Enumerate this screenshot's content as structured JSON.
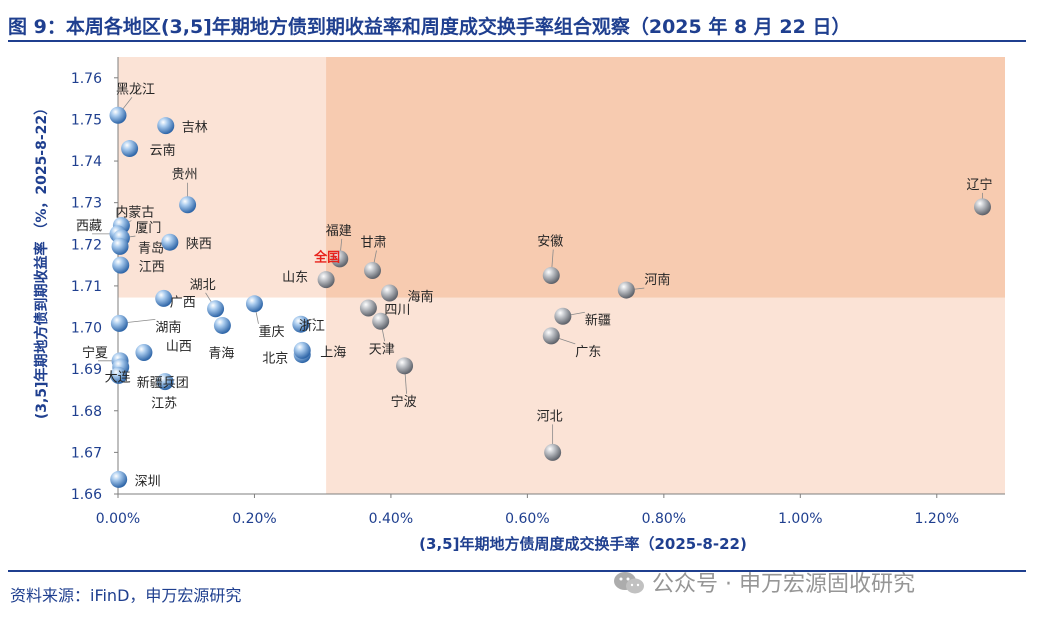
{
  "figure": {
    "title": "图 9：本周各地区(3,5]年期地方债到期收益率和周度成交换手率组合观察（2025 年 8 月 22 日）",
    "source": "资料来源：iFinD，申万宏源研究",
    "watermark": "公众号 · 申万宏源固收研究"
  },
  "chart_data": {
    "type": "scatter",
    "xlabel": "(3,5]年期地方债周度成交换手率（2025-8-22)",
    "ylabel": "(3,5]年期地方债到期收益率 （%，2025-8-22）",
    "xlim": [
      0.0,
      1.3
    ],
    "ylim": [
      1.66,
      1.765
    ],
    "x_ticks": [
      0.0,
      0.2,
      0.4,
      0.6,
      0.8,
      1.0,
      1.2
    ],
    "x_tick_labels": [
      "0.00%",
      "0.20%",
      "0.40%",
      "0.60%",
      "0.80%",
      "1.00%",
      "1.20%"
    ],
    "y_ticks": [
      1.66,
      1.67,
      1.68,
      1.69,
      1.7,
      1.71,
      1.72,
      1.73,
      1.74,
      1.75,
      1.76
    ],
    "y_tick_labels": [
      "1.66",
      "1.67",
      "1.68",
      "1.69",
      "1.70",
      "1.71",
      "1.72",
      "1.73",
      "1.74",
      "1.75",
      "1.76"
    ],
    "quadrant_split": {
      "x": 0.305,
      "y": 1.7072
    },
    "colors": {
      "light_quadrant": "#fbe3d6",
      "dark_quadrant": "#f7cbb0",
      "point_blue": "#6fa3d6",
      "point_gray": "#9a9ea6",
      "national_label": "#e8221b",
      "axis_text": "#1f3f8f"
    },
    "points": [
      {
        "name": "黑龙江",
        "x": 0.0,
        "y": 1.751,
        "style": "blue"
      },
      {
        "name": "吉林",
        "x": 0.07,
        "y": 1.7485,
        "style": "blue"
      },
      {
        "name": "云南",
        "x": 0.017,
        "y": 1.743,
        "style": "blue"
      },
      {
        "name": "贵州",
        "x": 0.102,
        "y": 1.7295,
        "style": "blue"
      },
      {
        "name": "内蒙古",
        "x": 0.005,
        "y": 1.7245,
        "style": "blue"
      },
      {
        "name": "西藏",
        "x": 0.0,
        "y": 1.7225,
        "style": "blue"
      },
      {
        "name": "厦门",
        "x": 0.005,
        "y": 1.7215,
        "style": "blue"
      },
      {
        "name": "青岛",
        "x": 0.003,
        "y": 1.7195,
        "style": "blue"
      },
      {
        "name": "陕西",
        "x": 0.076,
        "y": 1.7205,
        "style": "blue"
      },
      {
        "name": "江西",
        "x": 0.004,
        "y": 1.715,
        "style": "blue"
      },
      {
        "name": "广西",
        "x": 0.067,
        "y": 1.707,
        "style": "blue"
      },
      {
        "name": "湖北",
        "x": 0.143,
        "y": 1.7045,
        "style": "blue"
      },
      {
        "name": "湖南",
        "x": 0.002,
        "y": 1.701,
        "style": "blue"
      },
      {
        "name": "青海",
        "x": 0.153,
        "y": 1.7005,
        "style": "blue"
      },
      {
        "name": "重庆",
        "x": 0.2,
        "y": 1.7057,
        "style": "blue"
      },
      {
        "name": "山西",
        "x": 0.038,
        "y": 1.694,
        "style": "blue"
      },
      {
        "name": "宁夏",
        "x": 0.003,
        "y": 1.692,
        "style": "blue"
      },
      {
        "name": "新疆兵团",
        "x": 0.004,
        "y": 1.6905,
        "style": "blue"
      },
      {
        "name": "大连",
        "x": 0.001,
        "y": 1.6885,
        "style": "blue"
      },
      {
        "name": "江苏",
        "x": 0.069,
        "y": 1.687,
        "style": "blue"
      },
      {
        "name": "北京",
        "x": 0.27,
        "y": 1.6935,
        "style": "blue"
      },
      {
        "name": "上海",
        "x": 0.27,
        "y": 1.6945,
        "style": "blue"
      },
      {
        "name": "浙江",
        "x": 0.268,
        "y": 1.7008,
        "style": "blue"
      },
      {
        "name": "深圳",
        "x": 0.001,
        "y": 1.6635,
        "style": "blue"
      },
      {
        "name": "全国",
        "x": 0.305,
        "y": 1.7115,
        "style": "gray",
        "highlight": true
      },
      {
        "name": "山东",
        "x": 0.305,
        "y": 1.7115,
        "style": "gray"
      },
      {
        "name": "福建",
        "x": 0.325,
        "y": 1.7165,
        "style": "gray"
      },
      {
        "name": "甘肃",
        "x": 0.373,
        "y": 1.7137,
        "style": "gray"
      },
      {
        "name": "海南",
        "x": 0.398,
        "y": 1.7083,
        "style": "gray"
      },
      {
        "name": "四川",
        "x": 0.367,
        "y": 1.7047,
        "style": "gray"
      },
      {
        "name": "天津",
        "x": 0.385,
        "y": 1.7015,
        "style": "gray"
      },
      {
        "name": "宁波",
        "x": 0.42,
        "y": 1.6908,
        "style": "gray"
      },
      {
        "name": "安徽",
        "x": 0.635,
        "y": 1.7125,
        "style": "gray"
      },
      {
        "name": "新疆",
        "x": 0.652,
        "y": 1.7027,
        "style": "gray"
      },
      {
        "name": "广东",
        "x": 0.635,
        "y": 1.698,
        "style": "gray"
      },
      {
        "name": "河南",
        "x": 0.745,
        "y": 1.709,
        "style": "gray"
      },
      {
        "name": "河北",
        "x": 0.637,
        "y": 1.67,
        "style": "gray"
      },
      {
        "name": "辽宁",
        "x": 1.267,
        "y": 1.729,
        "style": "gray"
      }
    ]
  }
}
